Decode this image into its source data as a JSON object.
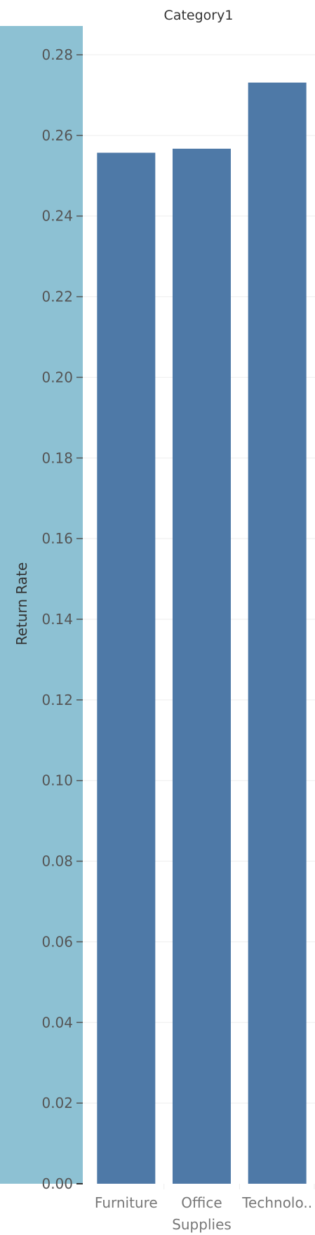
{
  "chart_data": {
    "type": "bar",
    "title": "Category1",
    "ylabel": "Return Rate",
    "xlabel": "",
    "categories": [
      "Furniture",
      "Office Supplies",
      "Technolo.."
    ],
    "category_lines": [
      [
        "Furniture"
      ],
      [
        "Office",
        "Supplies"
      ],
      [
        "Technolo.."
      ]
    ],
    "values": [
      0.2557,
      0.2567,
      0.2731
    ],
    "ylim": [
      0,
      0.28
    ],
    "yticks": [
      "0.00",
      "0.02",
      "0.04",
      "0.06",
      "0.08",
      "0.10",
      "0.12",
      "0.14",
      "0.16",
      "0.18",
      "0.20",
      "0.22",
      "0.24",
      "0.26",
      "0.28"
    ],
    "grid": true,
    "legend": "none",
    "colors": {
      "bar": "#4e79a7",
      "axis_band": "#8dc1d3",
      "grid": "#eeeeee",
      "tick": "#555555"
    }
  }
}
